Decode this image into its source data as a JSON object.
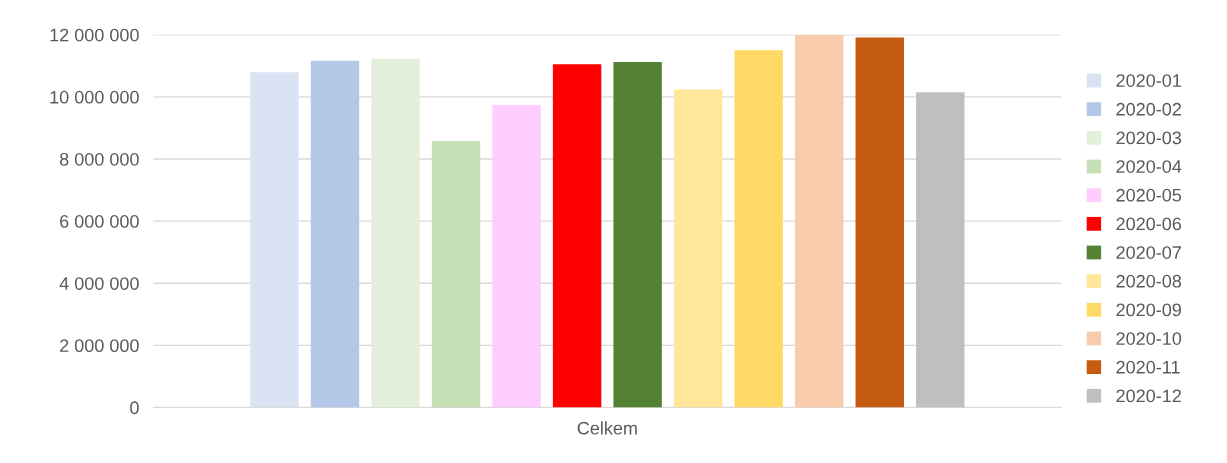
{
  "chart_data": {
    "type": "bar",
    "categories": [
      "Celkem"
    ],
    "series": [
      {
        "name": "2020-01",
        "color": "#dae3f3",
        "values": [
          10790000
        ]
      },
      {
        "name": "2020-02",
        "color": "#b4c7e7",
        "values": [
          11160000
        ]
      },
      {
        "name": "2020-03",
        "color": "#e2efda",
        "values": [
          11230000
        ]
      },
      {
        "name": "2020-04",
        "color": "#c5e0b4",
        "values": [
          8580000
        ]
      },
      {
        "name": "2020-05",
        "color": "#ffccff",
        "values": [
          9740000
        ]
      },
      {
        "name": "2020-06",
        "color": "#ff0000",
        "values": [
          11050000
        ]
      },
      {
        "name": "2020-07",
        "color": "#548235",
        "values": [
          11120000
        ]
      },
      {
        "name": "2020-08",
        "color": "#ffe699",
        "values": [
          10240000
        ]
      },
      {
        "name": "2020-09",
        "color": "#ffd966",
        "values": [
          11500000
        ]
      },
      {
        "name": "2020-10",
        "color": "#f8cbad",
        "values": [
          12000000
        ]
      },
      {
        "name": "2020-11",
        "color": "#c55a11",
        "values": [
          11910000
        ]
      },
      {
        "name": "2020-12",
        "color": "#bfbfbf",
        "values": [
          10150000
        ]
      }
    ],
    "ylim": [
      0,
      12000000
    ],
    "yticks": [
      {
        "value": 0,
        "label": "0"
      },
      {
        "value": 2000000,
        "label": "2 000 000"
      },
      {
        "value": 4000000,
        "label": "4 000 000"
      },
      {
        "value": 6000000,
        "label": "6 000 000"
      },
      {
        "value": 8000000,
        "label": "8 000 000"
      },
      {
        "value": 10000000,
        "label": "10 000 000"
      },
      {
        "value": 12000000,
        "label": "12 000 000"
      }
    ],
    "grid": "y",
    "legend": "right"
  }
}
